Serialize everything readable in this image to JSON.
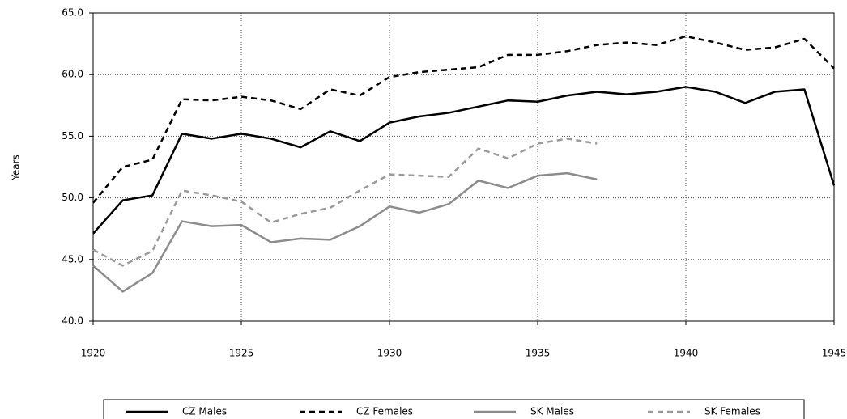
{
  "chart_data": {
    "type": "line",
    "y_label": "Years",
    "x": [
      1920,
      1921,
      1922,
      1923,
      1924,
      1925,
      1926,
      1927,
      1928,
      1929,
      1930,
      1931,
      1932,
      1933,
      1934,
      1935,
      1936,
      1937,
      1938,
      1939,
      1940,
      1941,
      1942,
      1943,
      1944,
      1945
    ],
    "xlim": [
      1920,
      1945
    ],
    "xticks": [
      1920,
      1925,
      1930,
      1935,
      1940,
      1945
    ],
    "ylim": [
      40,
      65
    ],
    "yticks": [
      {
        "value": 40,
        "label": "40.0"
      },
      {
        "value": 45,
        "label": "45.0"
      },
      {
        "value": 50,
        "label": "50.0"
      },
      {
        "value": 55,
        "label": "55.0"
      },
      {
        "value": 60,
        "label": "60.0"
      },
      {
        "value": 65,
        "label": "65.0"
      }
    ],
    "grid": true,
    "legend": "bottom",
    "series": [
      {
        "name": "CZ Males",
        "color": "#000000",
        "dash": false,
        "values": [
          47.1,
          49.8,
          50.2,
          55.2,
          54.8,
          55.2,
          54.8,
          54.1,
          55.4,
          54.6,
          56.1,
          56.6,
          56.9,
          57.4,
          57.9,
          57.8,
          58.3,
          58.6,
          58.4,
          58.6,
          59.0,
          58.6,
          57.7,
          58.6,
          58.8,
          51.0
        ]
      },
      {
        "name": "CZ Females",
        "color": "#000000",
        "dash": true,
        "values": [
          49.6,
          52.5,
          53.1,
          58.0,
          57.9,
          58.2,
          57.9,
          57.2,
          58.8,
          58.3,
          59.8,
          60.2,
          60.4,
          60.6,
          61.6,
          61.6,
          61.9,
          62.4,
          62.6,
          62.4,
          63.1,
          62.6,
          62.0,
          62.2,
          62.9,
          60.5
        ]
      },
      {
        "name": "SK Males",
        "color": "#8c8c8c",
        "dash": false,
        "values": [
          44.5,
          42.4,
          43.9,
          48.1,
          47.7,
          47.8,
          46.4,
          46.7,
          46.6,
          47.7,
          49.3,
          48.8,
          49.5,
          51.4,
          50.8,
          51.8,
          52.0,
          51.5,
          null,
          null,
          null,
          null,
          null,
          null,
          null,
          null
        ]
      },
      {
        "name": "SK Females",
        "color": "#9a9a9a",
        "dash": true,
        "values": [
          45.8,
          44.5,
          45.7,
          50.6,
          50.2,
          49.7,
          48.0,
          48.7,
          49.2,
          50.6,
          51.9,
          51.8,
          51.7,
          54.0,
          53.2,
          54.4,
          54.8,
          54.4,
          null,
          null,
          null,
          null,
          null,
          null,
          null,
          null
        ]
      }
    ]
  }
}
